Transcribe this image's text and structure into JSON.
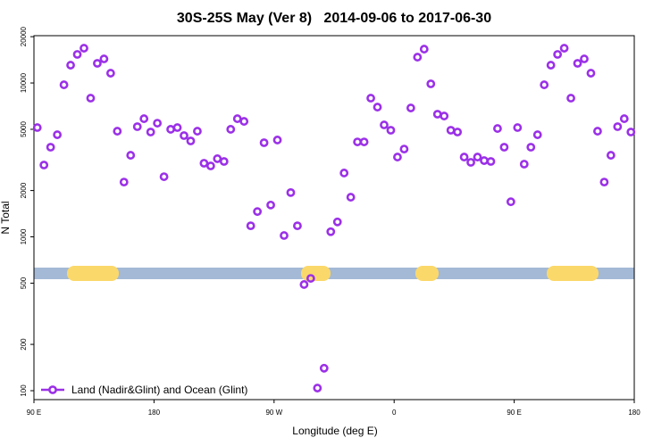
{
  "chart_data": {
    "type": "scatter",
    "title": "30S-25S May (Ver 8)   2014-09-06 to 2017-06-30",
    "x_label": "Longitude (deg E)",
    "y_label": "N Total",
    "log_y": true,
    "xlim": [
      90,
      540
    ],
    "ylim": [
      87.5,
      20300
    ],
    "xticks": [
      {
        "value": 90,
        "label": "90 E"
      },
      {
        "value": 180,
        "label": "180"
      },
      {
        "value": 270,
        "label": "90 W"
      },
      {
        "value": 360,
        "label": "0"
      },
      {
        "value": 450,
        "label": "90 E"
      },
      {
        "value": 540,
        "label": "180"
      }
    ],
    "yticks": [
      100,
      200,
      500,
      1000,
      2000,
      5000,
      10000,
      20000
    ],
    "legend": "bottom-left",
    "series": [
      {
        "name": "Land (Nadir&Glint) and Ocean (Glint)",
        "color": "#9b30e8",
        "x": [
          92.5,
          97.5,
          102.5,
          107.5,
          112.5,
          117.5,
          122.5,
          127.5,
          132.5,
          137.5,
          142.5,
          147.5,
          152.5,
          157.5,
          162.5,
          167.5,
          172.5,
          177.5,
          182.5,
          187.5,
          192.5,
          197.5,
          202.5,
          207.5,
          212.5,
          217.5,
          222.5,
          227.5,
          232.5,
          237.5,
          242.5,
          247.5,
          252.5,
          257.5,
          262.5,
          267.5,
          272.5,
          277.5,
          282.5,
          287.5,
          292.5,
          297.5,
          302.5,
          307.5,
          312.5,
          317.5,
          322.5,
          327.5,
          332.5,
          337.5,
          342.5,
          347.5,
          352.5,
          357.5,
          362.5,
          367.5,
          372.5,
          377.5,
          382.5,
          387.5,
          392.5,
          397.5,
          402.5,
          407.5,
          412.5,
          417.5,
          422.5,
          427.5,
          432.5,
          437.5,
          442.5,
          447.5,
          452.5,
          457.5,
          462.5,
          467.5,
          472.5,
          477.5,
          482.5,
          487.5,
          492.5,
          497.5,
          502.5,
          507.5,
          512.5,
          517.5,
          522.5,
          527.5,
          532.5,
          537.5
        ],
        "values": [
          5130,
          2930,
          3825,
          4610,
          9730,
          13060,
          15340,
          16830,
          7970,
          13420,
          14340,
          11580,
          4860,
          2270,
          3390,
          5200,
          5860,
          4800,
          5480,
          2460,
          5000,
          5130,
          4550,
          4200,
          4860,
          3010,
          2890,
          3220,
          3090,
          5000,
          5860,
          5630,
          1180,
          1460,
          4090,
          1610,
          4260,
          1020,
          1940,
          1180,
          490,
          537,
          104,
          140,
          1080,
          1250,
          2600,
          1810,
          4140,
          4140,
          7970,
          6970,
          5340,
          4930,
          3300,
          3720,
          6880,
          14720,
          16600,
          9870,
          6270,
          6100,
          4930,
          4800,
          3300,
          3050,
          3300,
          3130,
          3090,
          5060,
          3825,
          1690,
          5130,
          2970,
          3825,
          4610,
          9730,
          13060,
          15340,
          16830,
          7970,
          13420,
          14340,
          11580,
          4860,
          2270,
          3390,
          5200,
          5860,
          4800
        ]
      }
    ]
  }
}
